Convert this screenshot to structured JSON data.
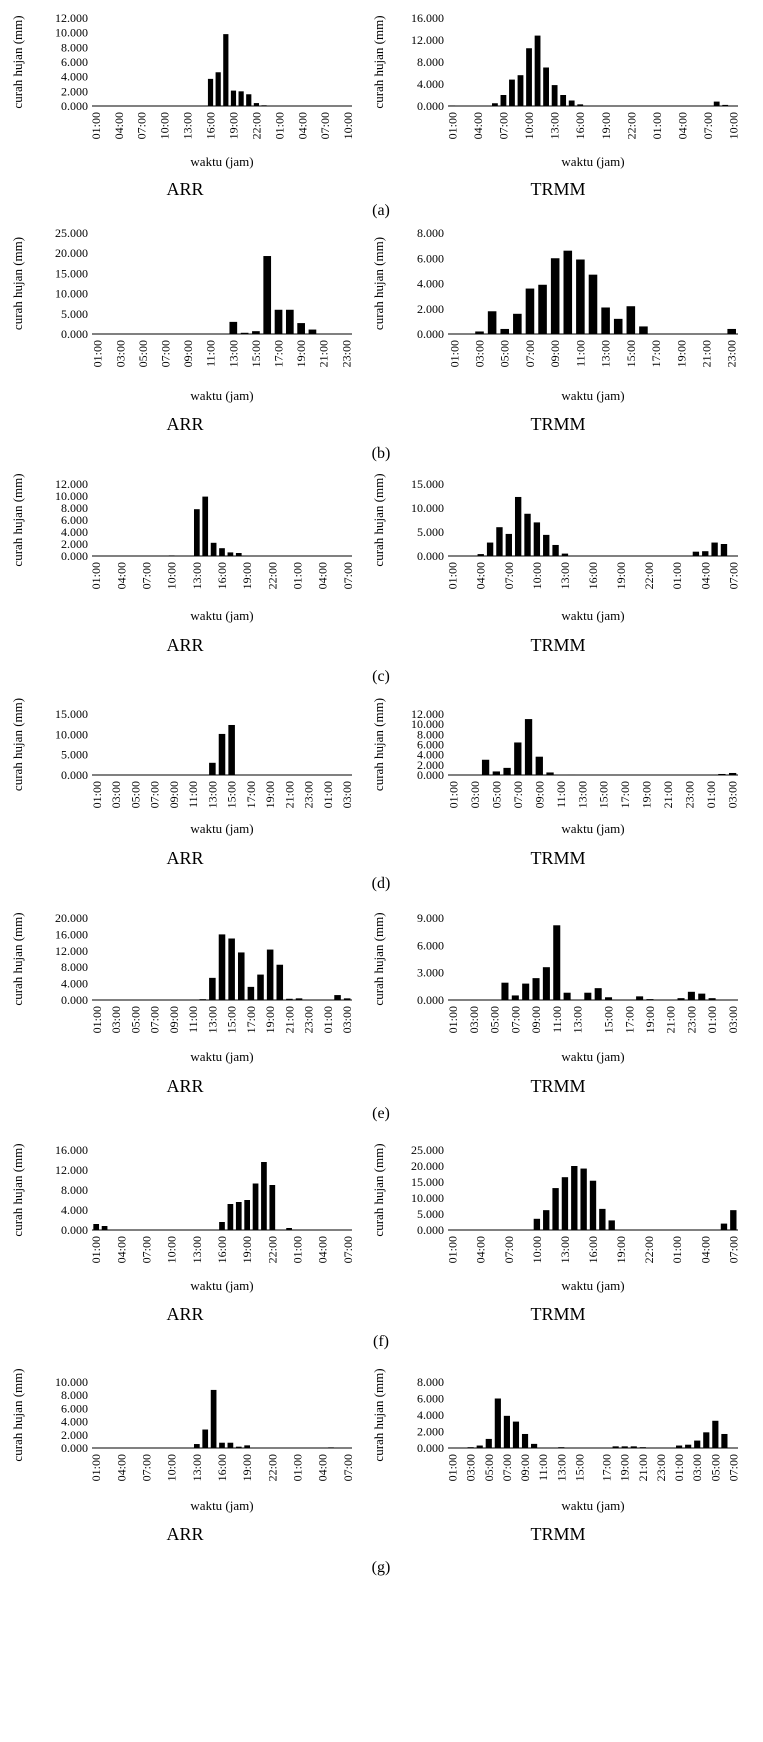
{
  "chart_data": [
    {
      "row": "a",
      "source": "ARR",
      "type": "bar",
      "title": "",
      "xlabel": "waktu (jam)",
      "ylabel": "curah hujan (mm)",
      "yticks": [
        "0.000",
        "2.000",
        "4.000",
        "6.000",
        "8.000",
        "10.000",
        "12.000"
      ],
      "ylim": [
        0,
        12
      ],
      "xticks": [
        "01:00",
        "04:00",
        "07:00",
        "10:00",
        "13:00",
        "16:00",
        "19:00",
        "22:00",
        "01:00",
        "04:00",
        "07:00",
        "10:00"
      ],
      "x_index": [
        0,
        1,
        2,
        3,
        4,
        5,
        6,
        7,
        8,
        9,
        10,
        11,
        12,
        13,
        14,
        15,
        16,
        17,
        18,
        19,
        20,
        21,
        22,
        23,
        24,
        25,
        26,
        27,
        28,
        29,
        30,
        31,
        32,
        33
      ],
      "values": [
        0,
        0,
        0,
        0,
        0,
        0,
        0,
        0,
        0,
        0,
        0,
        0,
        0,
        0,
        0,
        3.7,
        4.6,
        9.8,
        2.1,
        2.0,
        1.6,
        0.4,
        0.1,
        0,
        0,
        0,
        0,
        0,
        0,
        0,
        0,
        0,
        0,
        0
      ]
    },
    {
      "row": "a",
      "source": "TRMM",
      "type": "bar",
      "title": "",
      "xlabel": "waktu (jam)",
      "ylabel": "curah hujan (mm)",
      "yticks": [
        "0.000",
        "4.000",
        "8.000",
        "12.000",
        "16.000"
      ],
      "ylim": [
        0,
        16
      ],
      "xticks": [
        "01:00",
        "04:00",
        "07:00",
        "10:00",
        "13:00",
        "16:00",
        "19:00",
        "22:00",
        "01:00",
        "04:00",
        "07:00",
        "10:00"
      ],
      "x_index": [
        0,
        1,
        2,
        3,
        4,
        5,
        6,
        7,
        8,
        9,
        10,
        11,
        12,
        13,
        14,
        15,
        16,
        17,
        18,
        19,
        20,
        21,
        22,
        23,
        24,
        25,
        26,
        27,
        28,
        29,
        30,
        31,
        32,
        33
      ],
      "values": [
        0.1,
        0,
        0,
        0,
        0,
        0.5,
        2.0,
        4.8,
        5.6,
        10.5,
        12.8,
        7.0,
        3.8,
        2.0,
        1.0,
        0.3,
        0,
        0,
        0,
        0,
        0,
        0,
        0,
        0,
        0,
        0,
        0,
        0,
        0,
        0,
        0,
        0.8,
        0.2,
        0
      ]
    },
    {
      "row": "b",
      "source": "ARR",
      "type": "bar",
      "title": "",
      "xlabel": "waktu (jam)",
      "ylabel": "curah hujan (mm)",
      "yticks": [
        "0.000",
        "5.000",
        "10.000",
        "15.000",
        "20.000",
        "25.000"
      ],
      "ylim": [
        0,
        25
      ],
      "xticks": [
        "01:00",
        "03:00",
        "05:00",
        "07:00",
        "09:00",
        "11:00",
        "13:00",
        "15:00",
        "17:00",
        "19:00",
        "21:00",
        "23:00"
      ],
      "x_index": [
        0,
        1,
        2,
        3,
        4,
        5,
        6,
        7,
        8,
        9,
        10,
        11,
        12,
        13,
        14,
        15,
        16,
        17,
        18,
        19,
        20,
        21,
        22
      ],
      "values": [
        0,
        0,
        0,
        0,
        0,
        0,
        0,
        0,
        0,
        0,
        0,
        0,
        3.0,
        0.3,
        0.7,
        19.3,
        6.0,
        6.0,
        2.7,
        1.1,
        0,
        0,
        0
      ]
    },
    {
      "row": "b",
      "source": "TRMM",
      "type": "bar",
      "title": "",
      "xlabel": "waktu (jam)",
      "ylabel": "curah hujan (mm)",
      "yticks": [
        "0.000",
        "2.000",
        "4.000",
        "6.000",
        "8.000"
      ],
      "ylim": [
        0,
        8
      ],
      "xticks": [
        "01:00",
        "03:00",
        "05:00",
        "07:00",
        "09:00",
        "11:00",
        "13:00",
        "15:00",
        "17:00",
        "19:00",
        "21:00",
        "23:00"
      ],
      "x_index": [
        0,
        1,
        2,
        3,
        4,
        5,
        6,
        7,
        8,
        9,
        10,
        11,
        12,
        13,
        14,
        15,
        16,
        17,
        18,
        19,
        20,
        21,
        22
      ],
      "values": [
        0,
        0,
        0.2,
        1.8,
        0.4,
        1.6,
        3.6,
        3.9,
        6.0,
        6.6,
        5.9,
        4.7,
        2.1,
        1.2,
        2.2,
        0.6,
        0,
        0,
        0,
        0,
        0,
        0,
        0.4
      ]
    },
    {
      "row": "c",
      "source": "ARR",
      "type": "bar",
      "title": "",
      "xlabel": "waktu (jam)",
      "ylabel": "curah hujan (mm)",
      "yticks": [
        "0.000",
        "2.000",
        "4.000",
        "6.000",
        "8.000",
        "10.000",
        "12.000"
      ],
      "ylim": [
        0,
        12
      ],
      "xticks": [
        "01:00",
        "04:00",
        "07:00",
        "10:00",
        "13:00",
        "16:00",
        "19:00",
        "22:00",
        "01:00",
        "04:00",
        "07:00"
      ],
      "x_index": [
        0,
        1,
        2,
        3,
        4,
        5,
        6,
        7,
        8,
        9,
        10,
        11,
        12,
        13,
        14,
        15,
        16,
        17,
        18,
        19,
        20,
        21,
        22,
        23,
        24,
        25,
        26,
        27,
        28,
        29,
        30
      ],
      "values": [
        0,
        0,
        0,
        0,
        0,
        0,
        0,
        0,
        0,
        0.1,
        0,
        0,
        7.8,
        9.9,
        2.2,
        1.3,
        0.6,
        0.5,
        0,
        0,
        0,
        0,
        0,
        0,
        0,
        0,
        0,
        0,
        0,
        0,
        0
      ]
    },
    {
      "row": "c",
      "source": "TRMM",
      "type": "bar",
      "title": "",
      "xlabel": "waktu (jam)",
      "ylabel": "curah hujan (mm)",
      "yticks": [
        "0.000",
        "5.000",
        "10.000",
        "15.000"
      ],
      "ylim": [
        0,
        15
      ],
      "xticks": [
        "01:00",
        "04:00",
        "07:00",
        "10:00",
        "13:00",
        "16:00",
        "19:00",
        "22:00",
        "01:00",
        "04:00",
        "07:00"
      ],
      "x_index": [
        0,
        1,
        2,
        3,
        4,
        5,
        6,
        7,
        8,
        9,
        10,
        11,
        12,
        13,
        14,
        15,
        16,
        17,
        18,
        19,
        20,
        21,
        22,
        23,
        24,
        25,
        26,
        27,
        28,
        29,
        30
      ],
      "values": [
        0,
        0,
        0,
        0.4,
        2.8,
        6.0,
        4.6,
        12.3,
        8.8,
        7.0,
        4.4,
        2.3,
        0.5,
        0,
        0,
        0,
        0,
        0,
        0,
        0,
        0,
        0,
        0,
        0,
        0,
        0,
        0.9,
        1.0,
        2.8,
        2.5,
        0
      ]
    },
    {
      "row": "d",
      "source": "ARR",
      "type": "bar",
      "title": "",
      "xlabel": "waktu (jam)",
      "ylabel": "curah hujan (mm)",
      "yticks": [
        "0.000",
        "5.000",
        "10.000",
        "15.000"
      ],
      "ylim": [
        0,
        15
      ],
      "xticks": [
        "01:00",
        "03:00",
        "05:00",
        "07:00",
        "09:00",
        "11:00",
        "13:00",
        "15:00",
        "17:00",
        "19:00",
        "21:00",
        "23:00",
        "01:00",
        "03:00"
      ],
      "x_index": [
        0,
        1,
        2,
        3,
        4,
        5,
        6,
        7,
        8,
        9,
        10,
        11,
        12,
        13,
        14,
        15,
        16,
        17,
        18,
        19,
        20,
        21,
        22,
        23,
        24,
        25,
        26
      ],
      "values": [
        0,
        0,
        0,
        0,
        0,
        0,
        0,
        0,
        0,
        0,
        0,
        0,
        3.0,
        10.1,
        12.3,
        0,
        0,
        0,
        0,
        0,
        0,
        0,
        0,
        0,
        0,
        0,
        0
      ]
    },
    {
      "row": "d",
      "source": "TRMM",
      "type": "bar",
      "title": "",
      "xlabel": "waktu (jam)",
      "ylabel": "curah hujan (mm)",
      "yticks": [
        "0.000",
        "2.000",
        "4.000",
        "6.000",
        "8.000",
        "10.000",
        "12.000"
      ],
      "ylim": [
        0,
        12
      ],
      "xticks": [
        "01:00",
        "03:00",
        "05:00",
        "07:00",
        "09:00",
        "11:00",
        "13:00",
        "15:00",
        "17:00",
        "19:00",
        "21:00",
        "23:00",
        "01:00",
        "03:00"
      ],
      "x_index": [
        0,
        1,
        2,
        3,
        4,
        5,
        6,
        7,
        8,
        9,
        10,
        11,
        12,
        13,
        14,
        15,
        16,
        17,
        18,
        19,
        20,
        21,
        22,
        23,
        24,
        25,
        26
      ],
      "values": [
        0,
        0,
        0,
        3.0,
        0.7,
        1.4,
        6.4,
        11.0,
        3.6,
        0.5,
        0,
        0.1,
        0,
        0,
        0,
        0,
        0,
        0,
        0,
        0,
        0,
        0,
        0,
        0,
        0,
        0.2,
        0.4
      ]
    },
    {
      "row": "e",
      "source": "ARR",
      "type": "bar",
      "title": "",
      "xlabel": "waktu (jam)",
      "ylabel": "curah hujan (mm)",
      "yticks": [
        "0.000",
        "4.000",
        "8.000",
        "12.000",
        "16.000",
        "20.000"
      ],
      "ylim": [
        0,
        20
      ],
      "xticks": [
        "01:00",
        "03:00",
        "05:00",
        "07:00",
        "09:00",
        "11:00",
        "13:00",
        "15:00",
        "17:00",
        "19:00",
        "21:00",
        "23:00",
        "01:00",
        "03:00"
      ],
      "x_index": [
        0,
        1,
        2,
        3,
        4,
        5,
        6,
        7,
        8,
        9,
        10,
        11,
        12,
        13,
        14,
        15,
        16,
        17,
        18,
        19,
        20,
        21,
        22,
        23,
        24,
        25,
        26
      ],
      "values": [
        0,
        0,
        0,
        0,
        0,
        0,
        0,
        0,
        0,
        0,
        0,
        0.2,
        5.4,
        16.0,
        15.0,
        11.6,
        3.2,
        6.2,
        12.3,
        8.6,
        0.3,
        0.4,
        0,
        0,
        0,
        1.2,
        0.4
      ]
    },
    {
      "row": "e",
      "source": "TRMM",
      "type": "bar",
      "title": "",
      "xlabel": "waktu (jam)",
      "ylabel": "curah hujan (mm)",
      "yticks": [
        "0.000",
        "3.000",
        "6.000",
        "9.000"
      ],
      "ylim": [
        0,
        9
      ],
      "xticks": [
        "01:00",
        "03:00",
        "05:00",
        "07:00",
        "09:00",
        "11:00",
        "13:00",
        "15:00",
        "17:00",
        "19:00",
        "21:00",
        "23:00",
        "01:00",
        "03:00"
      ],
      "x_index": [
        0,
        1,
        2,
        3,
        4,
        5,
        6,
        7,
        8,
        9,
        10,
        11,
        12,
        13,
        14,
        15,
        16,
        17,
        18,
        19,
        20,
        21,
        22,
        23,
        24,
        25,
        26,
        27
      ],
      "values": [
        0,
        0,
        0,
        0,
        0,
        1.9,
        0.5,
        1.8,
        2.4,
        3.6,
        8.2,
        0.8,
        0,
        0.8,
        1.3,
        0.3,
        0,
        0,
        0.4,
        0.1,
        0,
        0,
        0.2,
        0.9,
        0.7,
        0.2,
        0,
        0
      ]
    },
    {
      "row": "f",
      "source": "ARR",
      "type": "bar",
      "title": "",
      "xlabel": "waktu (jam)",
      "ylabel": "curah hujan (mm)",
      "yticks": [
        "0.000",
        "4.000",
        "8.000",
        "12.000",
        "16.000"
      ],
      "ylim": [
        0,
        16
      ],
      "xticks": [
        "01:00",
        "04:00",
        "07:00",
        "10:00",
        "13:00",
        "16:00",
        "19:00",
        "22:00",
        "01:00",
        "04:00",
        "07:00"
      ],
      "x_index": [
        0,
        1,
        2,
        3,
        4,
        5,
        6,
        7,
        8,
        9,
        10,
        11,
        12,
        13,
        14,
        15,
        16,
        17,
        18,
        19,
        20,
        21,
        22,
        23,
        24,
        25,
        26,
        27,
        28,
        29,
        30
      ],
      "values": [
        1.2,
        0.8,
        0,
        0,
        0,
        0,
        0,
        0,
        0,
        0,
        0,
        0,
        0,
        0,
        0,
        1.6,
        5.2,
        5.6,
        6.0,
        9.3,
        13.6,
        9.0,
        0.1,
        0.4,
        0,
        0,
        0,
        0,
        0,
        0,
        0
      ]
    },
    {
      "row": "f",
      "source": "TRMM",
      "type": "bar",
      "title": "",
      "xlabel": "waktu (jam)",
      "ylabel": "curah hujan (mm)",
      "yticks": [
        "0.000",
        "5.000",
        "10.000",
        "15.000",
        "20.000",
        "25.000"
      ],
      "ylim": [
        0,
        25
      ],
      "xticks": [
        "01:00",
        "04:00",
        "07:00",
        "10:00",
        "13:00",
        "16:00",
        "19:00",
        "22:00",
        "01:00",
        "04:00",
        "07:00"
      ],
      "x_index": [
        0,
        1,
        2,
        3,
        4,
        5,
        6,
        7,
        8,
        9,
        10,
        11,
        12,
        13,
        14,
        15,
        16,
        17,
        18,
        19,
        20,
        21,
        22,
        23,
        24,
        25,
        26,
        27,
        28,
        29,
        30
      ],
      "values": [
        0,
        0,
        0,
        0,
        0,
        0,
        0,
        0,
        0,
        3.5,
        6.2,
        13.1,
        16.5,
        20.0,
        19.2,
        15.4,
        6.6,
        3.0,
        0,
        0,
        0,
        0,
        0,
        0,
        0,
        0,
        0,
        0,
        0,
        2.0,
        6.2
      ]
    },
    {
      "row": "g",
      "source": "ARR",
      "type": "bar",
      "title": "",
      "xlabel": "waktu (jam)",
      "ylabel": "curah hujan (mm)",
      "yticks": [
        "0.000",
        "2.000",
        "4.000",
        "6.000",
        "8.000",
        "10.000"
      ],
      "ylim": [
        0,
        10
      ],
      "xticks": [
        "01:00",
        "04:00",
        "07:00",
        "10:00",
        "13:00",
        "16:00",
        "19:00",
        "22:00",
        "01:00",
        "04:00",
        "07:00"
      ],
      "x_index": [
        0,
        1,
        2,
        3,
        4,
        5,
        6,
        7,
        8,
        9,
        10,
        11,
        12,
        13,
        14,
        15,
        16,
        17,
        18,
        19,
        20,
        21,
        22,
        23,
        24,
        25,
        26,
        27,
        28,
        29,
        30
      ],
      "values": [
        0,
        0,
        0,
        0,
        0,
        0,
        0,
        0,
        0,
        0,
        0,
        0,
        0.6,
        2.8,
        8.8,
        0.8,
        0.8,
        0.2,
        0.4,
        0,
        0,
        0,
        0,
        0,
        0,
        0,
        0,
        0,
        0.1,
        0,
        0
      ]
    },
    {
      "row": "g",
      "source": "TRMM",
      "type": "bar",
      "title": "",
      "xlabel": "waktu (jam)",
      "ylabel": "curah hujan (mm)",
      "yticks": [
        "0.000",
        "2.000",
        "4.000",
        "6.000",
        "8.000"
      ],
      "ylim": [
        0,
        8
      ],
      "xticks": [
        "01:00",
        "03:00",
        "05:00",
        "07:00",
        "09:00",
        "11:00",
        "13:00",
        "15:00",
        "17:00",
        "19:00",
        "21:00",
        "23:00",
        "01:00",
        "03:00",
        "05:00",
        "07:00"
      ],
      "x_index": [
        0,
        1,
        2,
        3,
        4,
        5,
        6,
        7,
        8,
        9,
        10,
        11,
        12,
        13,
        14,
        15,
        16,
        17,
        18,
        19,
        20,
        21,
        22,
        23,
        24,
        25,
        26,
        27,
        28,
        29,
        30,
        31
      ],
      "values": [
        0,
        0,
        0.1,
        0.3,
        1.1,
        6.0,
        3.9,
        3.2,
        1.7,
        0.5,
        0,
        0,
        0.1,
        0,
        0,
        0,
        0,
        0,
        0.2,
        0.2,
        0.2,
        0.1,
        0,
        0,
        0,
        0.3,
        0.4,
        0.9,
        1.9,
        3.3,
        1.7,
        0
      ]
    }
  ],
  "row_labels": [
    "(a)",
    "(b)",
    "(c)",
    "(d)",
    "(e)",
    "(f)",
    "(g)"
  ],
  "colors": {
    "bar": "#000000",
    "axis": "#000000",
    "background": "#ffffff"
  }
}
